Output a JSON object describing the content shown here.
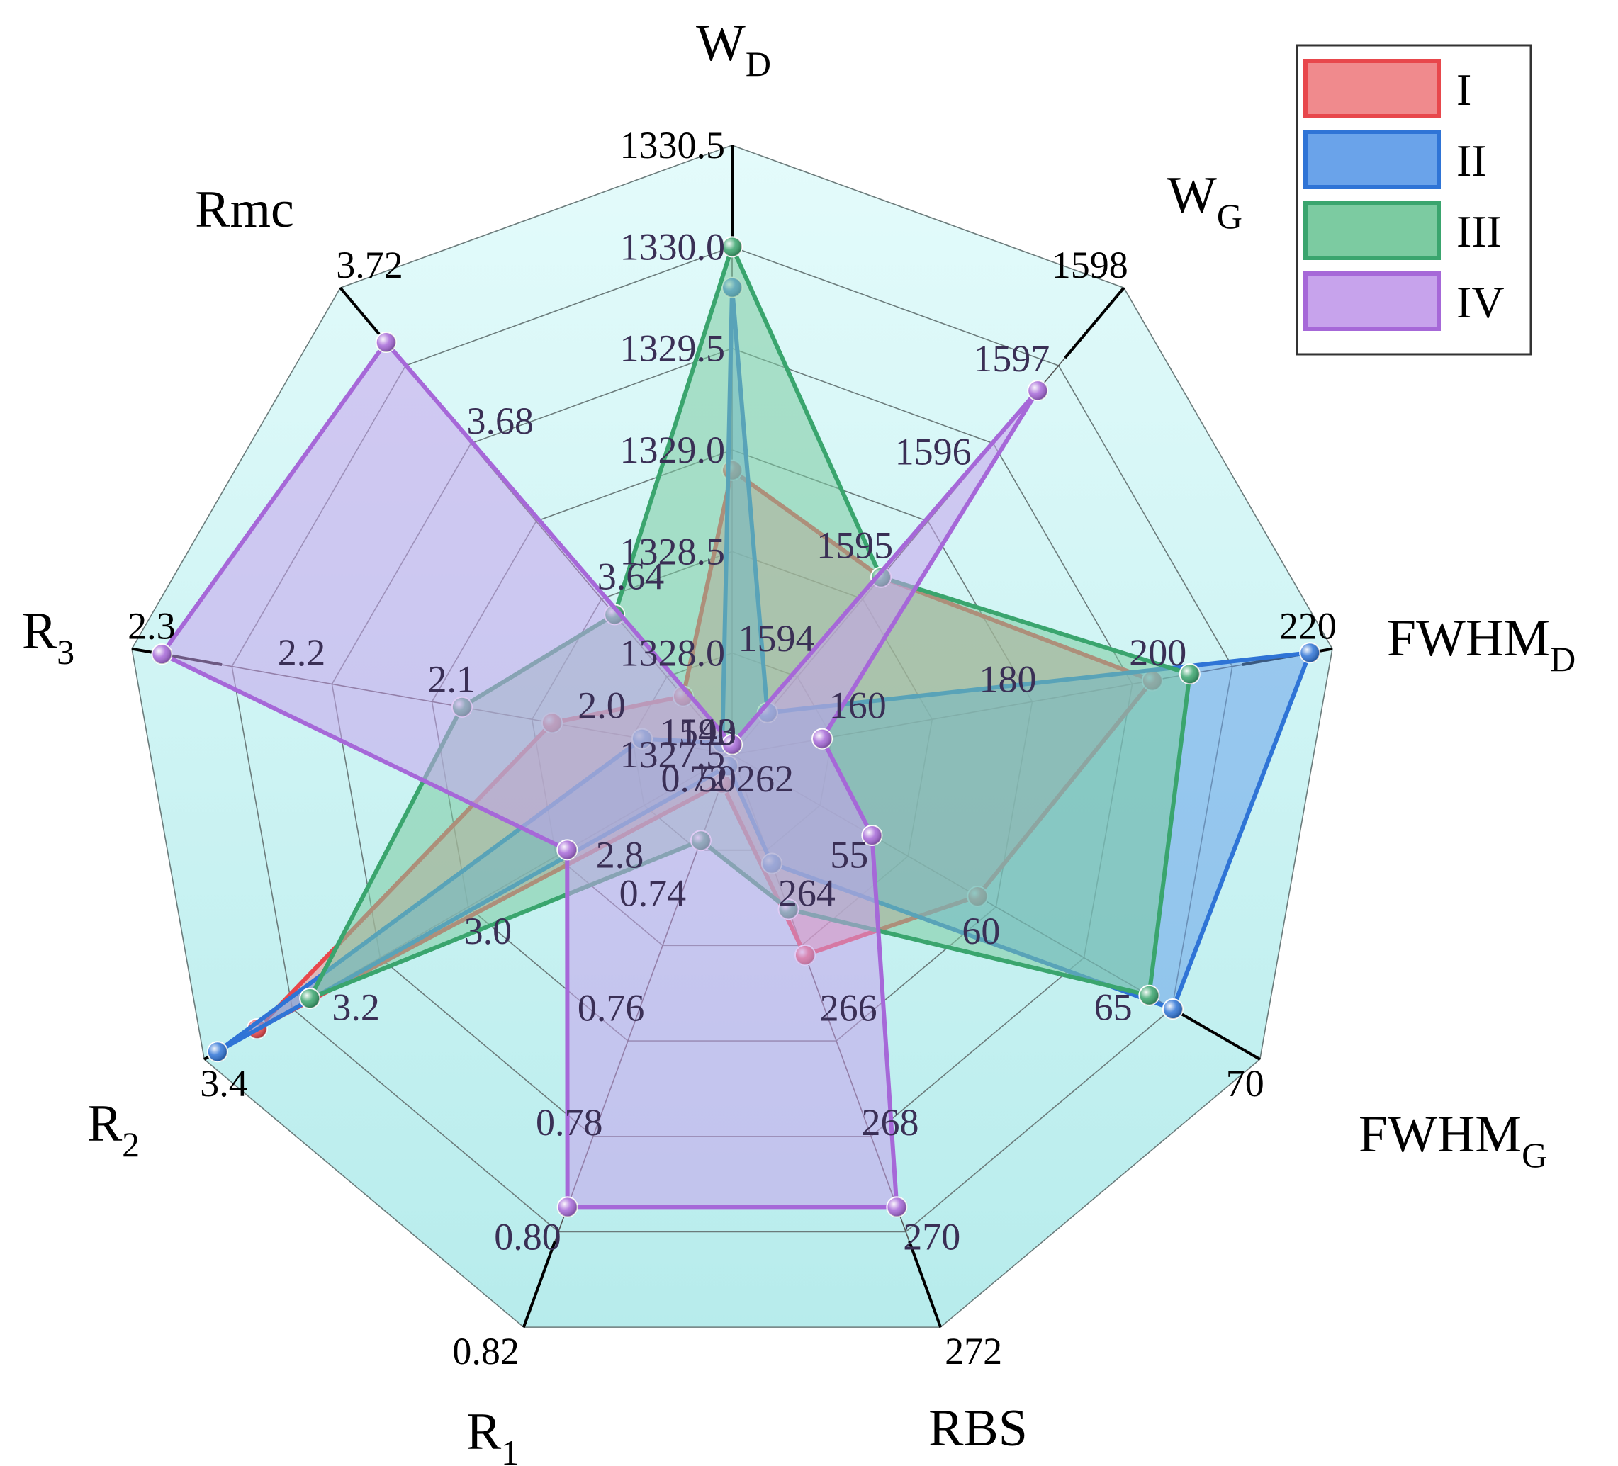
{
  "chart_data": {
    "type": "radar",
    "axes": [
      {
        "title": "W",
        "sub": "D",
        "ticks": [
          "1327.5",
          "1328.0",
          "1328.5",
          "1329.0",
          "1329.5",
          "1330.0",
          "1330.5"
        ],
        "range": [
          1327.5,
          1330.5
        ]
      },
      {
        "title": "W",
        "sub": "G",
        "ticks": [
          "1593",
          "1594",
          "1595",
          "1596",
          "1597",
          "1598"
        ],
        "range": [
          1593,
          1598
        ]
      },
      {
        "title": "FWHM",
        "sub": "D",
        "ticks": [
          "140",
          "160",
          "180",
          "200",
          "220"
        ],
        "range": [
          140,
          220
        ]
      },
      {
        "title": "FWHM",
        "sub": "G",
        "ticks": [
          "50",
          "55",
          "60",
          "65",
          "70"
        ],
        "range": [
          50,
          70
        ]
      },
      {
        "title": "RBS",
        "sub": "",
        "ticks": [
          "262",
          "264",
          "266",
          "268",
          "270",
          "272"
        ],
        "range": [
          262,
          272
        ]
      },
      {
        "title": "R",
        "sub": "1",
        "ticks": [
          "0.72",
          "0.74",
          "0.76",
          "0.78",
          "0.80",
          "0.82"
        ],
        "range": [
          0.72,
          0.82
        ]
      },
      {
        "title": "R",
        "sub": "2",
        "ticks": [
          "2.8",
          "3.0",
          "3.2",
          "3.4"
        ],
        "range": [
          2.6,
          3.4
        ]
      },
      {
        "title": "R",
        "sub": "3",
        "ticks": [
          "2.0",
          "2.1",
          "2.2",
          "2.3"
        ],
        "range": [
          1.9,
          2.3
        ]
      },
      {
        "title": "Rmc",
        "sub": "",
        "ticks": [
          "3.64",
          "3.68",
          "3.72"
        ],
        "range": [
          3.6,
          3.72
        ]
      }
    ],
    "series": [
      {
        "name": "I",
        "color": "#e8474c",
        "fill": "#f08a8d",
        "values": [
          1328.9,
          1594.9,
          196,
          59.3,
          265.5,
          0.725,
          3.32,
          2.02,
          3.615
        ]
      },
      {
        "name": "II",
        "color": "#2f74d6",
        "fill": "#6aa3ea",
        "values": [
          1329.8,
          1593.45,
          217,
          66.7,
          263.9,
          0.722,
          3.38,
          1.96,
          3.603
        ]
      },
      {
        "name": "III",
        "color": "#3aa56e",
        "fill": "#7ccba1",
        "values": [
          1330.0,
          1594.9,
          201,
          65.8,
          264.7,
          0.735,
          3.24,
          2.08,
          3.636
        ]
      },
      {
        "name": "IV",
        "color": "#a668d8",
        "fill": "#c7a3ec",
        "values": [
          1327.55,
          1596.9,
          152,
          55.3,
          269.9,
          0.799,
          2.85,
          2.28,
          3.706
        ]
      }
    ],
    "legend": "top-right",
    "grid": true
  }
}
